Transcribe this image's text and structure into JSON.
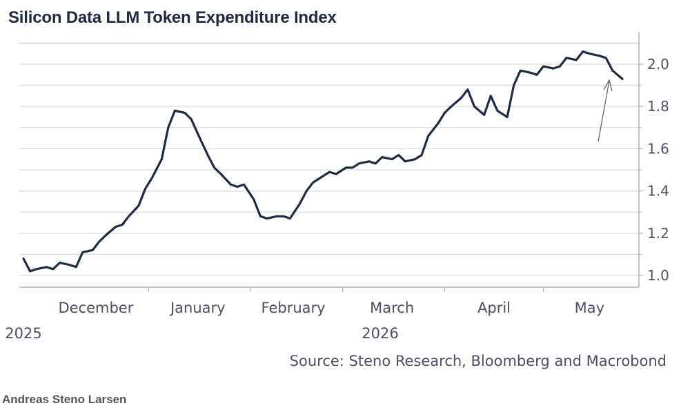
{
  "title": "Silicon Data LLM Token Expenditure Index",
  "source": "Source: Steno Research, Bloomberg and Macrobond",
  "author": "Andreas Steno Larsen",
  "colors": {
    "line": "#1f2a44",
    "grid": "#d9d9d9",
    "axis": "#b0b0b0",
    "text": "#4a5060"
  },
  "chart_data": {
    "type": "line",
    "title": "Silicon Data LLM Token Expenditure Index",
    "xlabel": "",
    "ylabel": "",
    "ylim": [
      0.95,
      2.1
    ],
    "y_ticks": [
      "1.0",
      "1.2",
      "1.4",
      "1.6",
      "1.8",
      "2.0"
    ],
    "grid": true,
    "y_axis_side": "right",
    "x_month_labels": [
      "December",
      "January",
      "February",
      "March",
      "April",
      "May"
    ],
    "x_year_labels": [
      "2025",
      "2026"
    ],
    "series": [
      {
        "name": "",
        "x": [
          "2025-11-24",
          "2025-11-26",
          "2025-11-28",
          "2025-12-01",
          "2025-12-03",
          "2025-12-05",
          "2025-12-08",
          "2025-12-10",
          "2025-12-12",
          "2025-12-15",
          "2025-12-17",
          "2025-12-19",
          "2025-12-22",
          "2025-12-24",
          "2025-12-26",
          "2025-12-29",
          "2025-12-31",
          "2026-01-02",
          "2026-01-05",
          "2026-01-07",
          "2026-01-09",
          "2026-01-12",
          "2026-01-14",
          "2026-01-16",
          "2026-01-19",
          "2026-01-21",
          "2026-01-23",
          "2026-01-26",
          "2026-01-28",
          "2026-01-30",
          "2026-02-02",
          "2026-02-04",
          "2026-02-06",
          "2026-02-09",
          "2026-02-11",
          "2026-02-13",
          "2026-02-16",
          "2026-02-18",
          "2026-02-20",
          "2026-02-23",
          "2026-02-25",
          "2026-02-27",
          "2026-03-02",
          "2026-03-04",
          "2026-03-06",
          "2026-03-09",
          "2026-03-11",
          "2026-03-13",
          "2026-03-16",
          "2026-03-18",
          "2026-03-20",
          "2026-03-23",
          "2026-03-25",
          "2026-03-27",
          "2026-03-30",
          "2026-04-01",
          "2026-04-03",
          "2026-04-06",
          "2026-04-08",
          "2026-04-10",
          "2026-04-13",
          "2026-04-15",
          "2026-04-17",
          "2026-04-20",
          "2026-04-22",
          "2026-04-24",
          "2026-04-27",
          "2026-04-29",
          "2026-05-01",
          "2026-05-04",
          "2026-05-06",
          "2026-05-08",
          "2026-05-11",
          "2026-05-13",
          "2026-05-15",
          "2026-05-18",
          "2026-05-20",
          "2026-05-22",
          "2026-05-25"
        ],
        "values": [
          1.08,
          1.02,
          1.03,
          1.04,
          1.03,
          1.06,
          1.05,
          1.04,
          1.11,
          1.12,
          1.16,
          1.19,
          1.23,
          1.24,
          1.28,
          1.33,
          1.41,
          1.46,
          1.55,
          1.7,
          1.78,
          1.77,
          1.74,
          1.67,
          1.57,
          1.51,
          1.48,
          1.43,
          1.42,
          1.43,
          1.36,
          1.28,
          1.27,
          1.28,
          1.28,
          1.27,
          1.34,
          1.4,
          1.44,
          1.47,
          1.49,
          1.48,
          1.51,
          1.51,
          1.53,
          1.54,
          1.53,
          1.56,
          1.55,
          1.57,
          1.54,
          1.55,
          1.57,
          1.66,
          1.72,
          1.77,
          1.8,
          1.84,
          1.88,
          1.8,
          1.76,
          1.85,
          1.78,
          1.75,
          1.9,
          1.97,
          1.96,
          1.95,
          1.99,
          1.98,
          1.99,
          2.03,
          2.02,
          2.06,
          2.05,
          2.04,
          2.03,
          1.97,
          1.93
        ]
      }
    ]
  }
}
